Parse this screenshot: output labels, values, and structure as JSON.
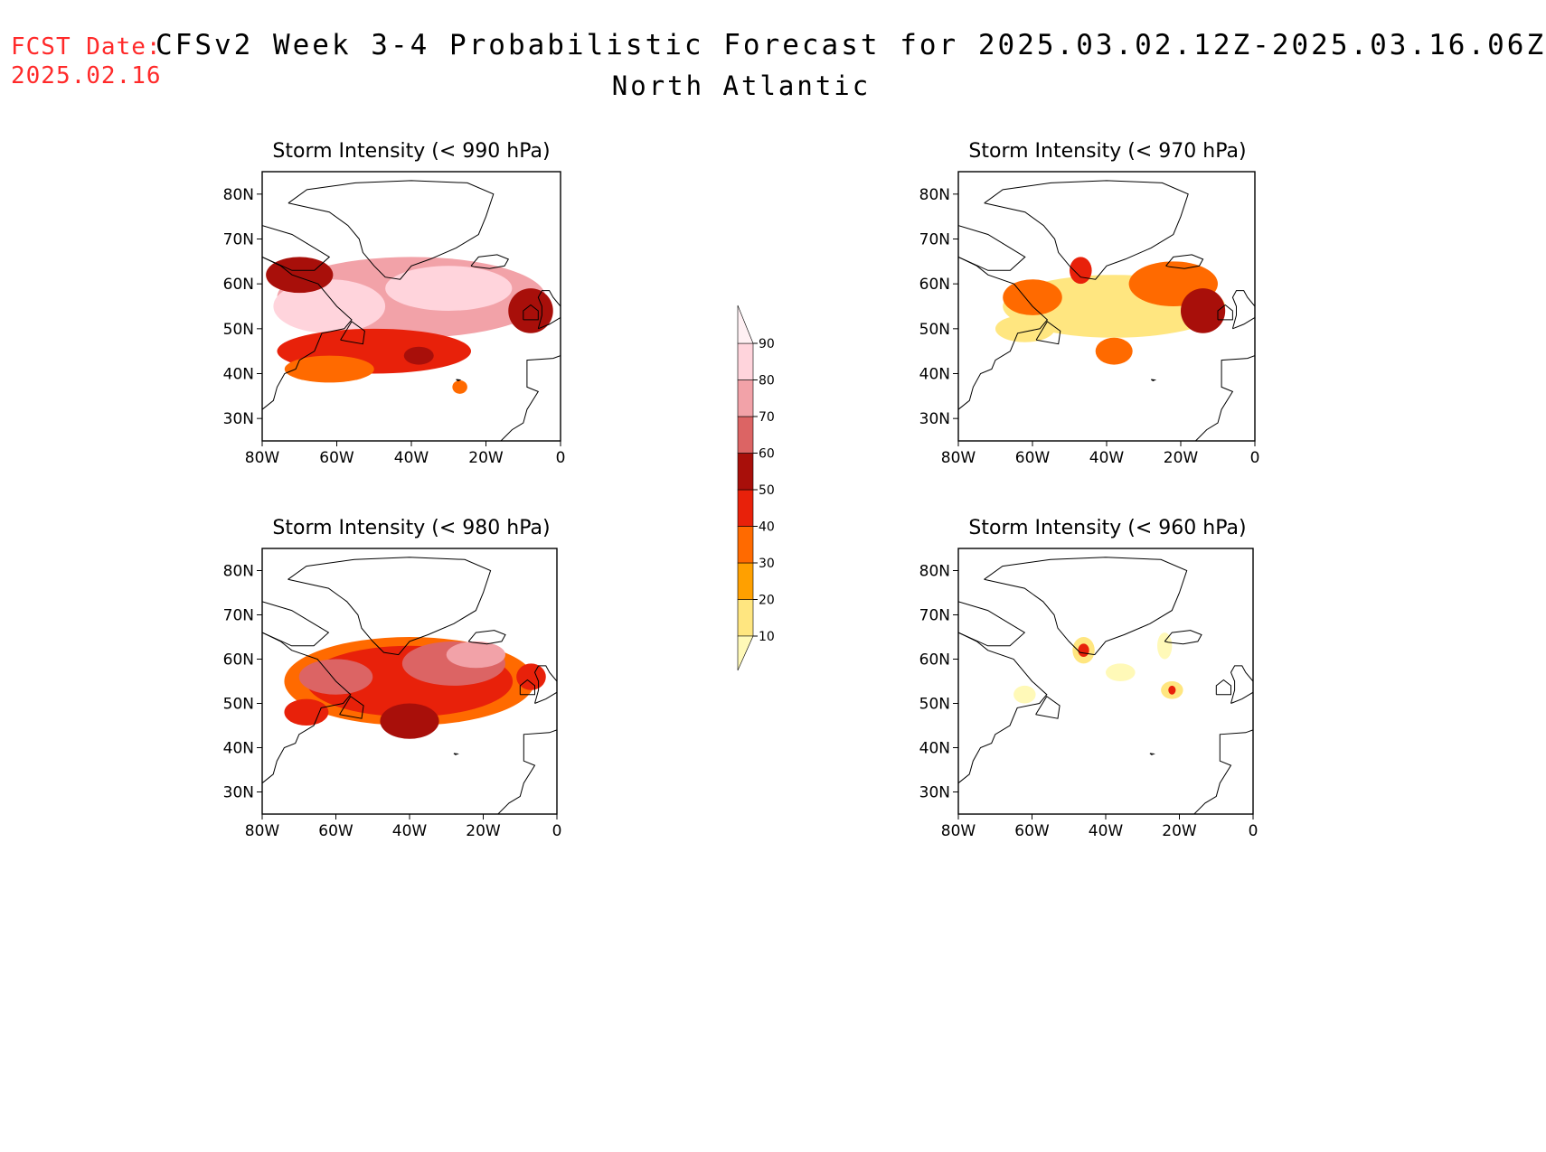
{
  "header": {
    "fcst_label": "FCST Date:",
    "fcst_date": "2025.02.16",
    "title": "CFSv2 Week 3-4 Probabilistic Forecast for 2025.03.02.12Z-2025.03.16.06Z",
    "region": "North Atlantic"
  },
  "axes": {
    "x_ticks": [
      "80W",
      "60W",
      "40W",
      "20W",
      "0"
    ],
    "x_values": [
      -80,
      -60,
      -40,
      -20,
      0
    ],
    "y_ticks": [
      "80N",
      "70N",
      "60N",
      "50N",
      "40N",
      "30N"
    ],
    "y_values": [
      80,
      70,
      60,
      50,
      40,
      30
    ],
    "lon_range": [
      -80,
      0
    ],
    "lat_range": [
      25,
      85
    ]
  },
  "colorbar": {
    "levels": [
      10,
      20,
      30,
      40,
      50,
      60,
      70,
      80,
      90
    ],
    "labels": [
      "10",
      "20",
      "30",
      "40",
      "50",
      "60",
      "70",
      "80",
      "90"
    ],
    "colors": [
      "#fff9b8",
      "#ffe680",
      "#ffa000",
      "#ff6a00",
      "#e8210a",
      "#a80f0a",
      "#dc6464",
      "#f2a2a8",
      "#ffd4dc",
      "#fff0f3"
    ]
  },
  "panels": [
    {
      "title": "Storm Intensity (< 990 hPa)",
      "blobs": [
        {
          "lon": -40,
          "lat": 57,
          "rlon": 36,
          "rlat": 9,
          "level": 7
        },
        {
          "lon": -30,
          "lat": 59,
          "rlon": 17,
          "rlat": 5,
          "level": 8
        },
        {
          "lon": -62,
          "lat": 55,
          "rlon": 15,
          "rlat": 6,
          "level": 8
        },
        {
          "lon": -70,
          "lat": 62,
          "rlon": 9,
          "rlat": 4,
          "level": 5
        },
        {
          "lon": -50,
          "lat": 45,
          "rlon": 26,
          "rlat": 5,
          "level": 4
        },
        {
          "lon": -62,
          "lat": 41,
          "rlon": 12,
          "rlat": 3,
          "level": 3
        },
        {
          "lon": -8,
          "lat": 54,
          "rlon": 6,
          "rlat": 5,
          "level": 5
        },
        {
          "lon": -38,
          "lat": 44,
          "rlon": 4,
          "rlat": 2,
          "level": 5
        },
        {
          "lon": -27,
          "lat": 37,
          "rlon": 2,
          "rlat": 1.5,
          "level": 3
        }
      ]
    },
    {
      "title": "Storm Intensity (< 970 hPa)",
      "blobs": [
        {
          "lon": -38,
          "lat": 55,
          "rlon": 30,
          "rlat": 7,
          "level": 1
        },
        {
          "lon": -22,
          "lat": 60,
          "rlon": 12,
          "rlat": 5,
          "level": 3
        },
        {
          "lon": -14,
          "lat": 54,
          "rlon": 6,
          "rlat": 5,
          "level": 5
        },
        {
          "lon": -60,
          "lat": 57,
          "rlon": 8,
          "rlat": 4,
          "level": 3
        },
        {
          "lon": -47,
          "lat": 63,
          "rlon": 3,
          "rlat": 3,
          "level": 4
        },
        {
          "lon": -38,
          "lat": 45,
          "rlon": 5,
          "rlat": 3,
          "level": 3
        },
        {
          "lon": -62,
          "lat": 50,
          "rlon": 8,
          "rlat": 3,
          "level": 1
        }
      ]
    },
    {
      "title": "Storm Intensity (< 980 hPa)",
      "blobs": [
        {
          "lon": -40,
          "lat": 55,
          "rlon": 34,
          "rlat": 10,
          "level": 3
        },
        {
          "lon": -40,
          "lat": 55,
          "rlon": 28,
          "rlat": 8,
          "level": 4
        },
        {
          "lon": -28,
          "lat": 59,
          "rlon": 14,
          "rlat": 5,
          "level": 6
        },
        {
          "lon": -22,
          "lat": 61,
          "rlon": 8,
          "rlat": 3,
          "level": 7
        },
        {
          "lon": -60,
          "lat": 56,
          "rlon": 10,
          "rlat": 4,
          "level": 6
        },
        {
          "lon": -40,
          "lat": 46,
          "rlon": 8,
          "rlat": 4,
          "level": 5
        },
        {
          "lon": -68,
          "lat": 48,
          "rlon": 6,
          "rlat": 3,
          "level": 4
        },
        {
          "lon": -7,
          "lat": 56,
          "rlon": 4,
          "rlat": 3,
          "level": 4
        }
      ]
    },
    {
      "title": "Storm Intensity (< 960 hPa)",
      "blobs": [
        {
          "lon": -46,
          "lat": 62,
          "rlon": 3,
          "rlat": 3,
          "level": 1
        },
        {
          "lon": -46,
          "lat": 62,
          "rlon": 1.5,
          "rlat": 1.5,
          "level": 4
        },
        {
          "lon": -36,
          "lat": 57,
          "rlon": 4,
          "rlat": 2,
          "level": 0
        },
        {
          "lon": -24,
          "lat": 63,
          "rlon": 2,
          "rlat": 3,
          "level": 0
        },
        {
          "lon": -22,
          "lat": 53,
          "rlon": 3,
          "rlat": 2,
          "level": 1
        },
        {
          "lon": -22,
          "lat": 53,
          "rlon": 1,
          "rlat": 1,
          "level": 4
        },
        {
          "lon": -62,
          "lat": 52,
          "rlon": 3,
          "rlat": 2,
          "level": 0
        }
      ]
    }
  ]
}
